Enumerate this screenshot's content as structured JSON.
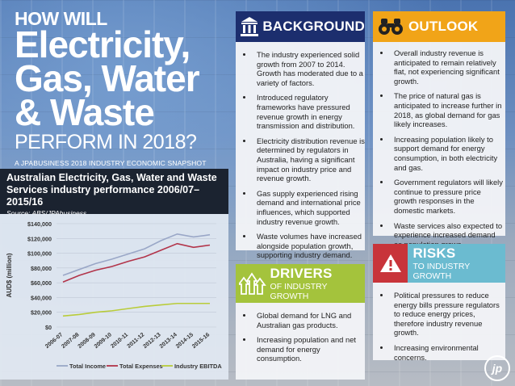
{
  "title": {
    "line1": "HOW WILL",
    "line2": "Electricity,",
    "line3": "Gas, Water",
    "line4": "& Waste",
    "line5": "PERFORM IN 2018?",
    "subtitle": "A JPABUSINESS 2018 INDUSTRY ECONOMIC SNAPSHOT"
  },
  "chart_title": "Australian Electricity, Gas, Water and Waste Services industry performance 2006/07–2015/16",
  "chart_source": "Source: ABS/JPAbusiness",
  "chart_data": {
    "type": "line",
    "ylabel": "AUD$ (million)",
    "ylim": [
      0,
      140000
    ],
    "yticks": [
      "$0",
      "$20,000",
      "$40,000",
      "$60,000",
      "$80,000",
      "$100,000",
      "$120,000",
      "$140,000"
    ],
    "categories": [
      "2006-07",
      "2007-08",
      "2008-09",
      "2009-10",
      "2010-11",
      "2011-12",
      "2012-13",
      "2013-14",
      "2014-15",
      "2015-16"
    ],
    "series": [
      {
        "name": "Total Income",
        "color": "#9aa7c7",
        "values": [
          70000,
          78000,
          86000,
          92000,
          99000,
          106000,
          117000,
          126000,
          122000,
          125000
        ]
      },
      {
        "name": "Total Expenses",
        "color": "#b2344a",
        "values": [
          61000,
          70000,
          77000,
          82000,
          89000,
          95000,
          104000,
          113000,
          108000,
          111000
        ]
      },
      {
        "name": "Industry EBITDA",
        "color": "#b9cc3a",
        "values": [
          15000,
          17000,
          20000,
          22000,
          25000,
          28000,
          30000,
          32000,
          32000,
          32000
        ]
      }
    ],
    "grid": true,
    "legend": "bottom"
  },
  "background": {
    "heading": "BACKGROUND",
    "icon": "pillar-icon",
    "color": "#1c2e6e",
    "bullets": [
      "The industry experienced solid growth from 2007 to 2014. Growth has moderated due to a variety of factors.",
      "Introduced regulatory frameworks have pressured revenue growth in energy transmission and distribution.",
      "Electricity distribution revenue is determined by regulators in Australia, having a significant impact on industry price and revenue growth.",
      "Gas supply experienced rising demand and international price influences, which supported industry revenue growth.",
      "Waste volumes have increased alongside population growth, supporting industry demand."
    ]
  },
  "outlook": {
    "heading": "OUTLOOK",
    "icon": "binoculars-icon",
    "color": "#f1a418",
    "bullets": [
      "Overall industry revenue is anticipated to remain relatively flat, not experiencing significant growth.",
      "The price of natural gas is anticipated to increase further in 2018, as global demand for gas likely increases.",
      "Increasing population likely to support demand for energy consumption, in both electricity and gas.",
      "Government regulators will likely continue to pressure price growth responses in the domestic markets.",
      "Waste services also expected to experience increased demand as population grows."
    ]
  },
  "drivers": {
    "heading": "DRIVERS",
    "subheading": "OF INDUSTRY GROWTH",
    "icon": "growth-arrows-icon",
    "color": "#a4c33c",
    "bullets": [
      "Global demand for LNG and Australian gas products.",
      "Increasing population and net demand for energy consumption."
    ]
  },
  "risks": {
    "heading": "RISKS",
    "subheading": "TO INDUSTRY GROWTH",
    "icon": "warning-icon",
    "color": "#6bbbd0",
    "bullets": [
      "Political pressures to reduce energy bills pressure regulators to reduce energy prices, therefore industry revenue growth.",
      "Increasing environmental concerns."
    ]
  },
  "logo_text": "jp"
}
